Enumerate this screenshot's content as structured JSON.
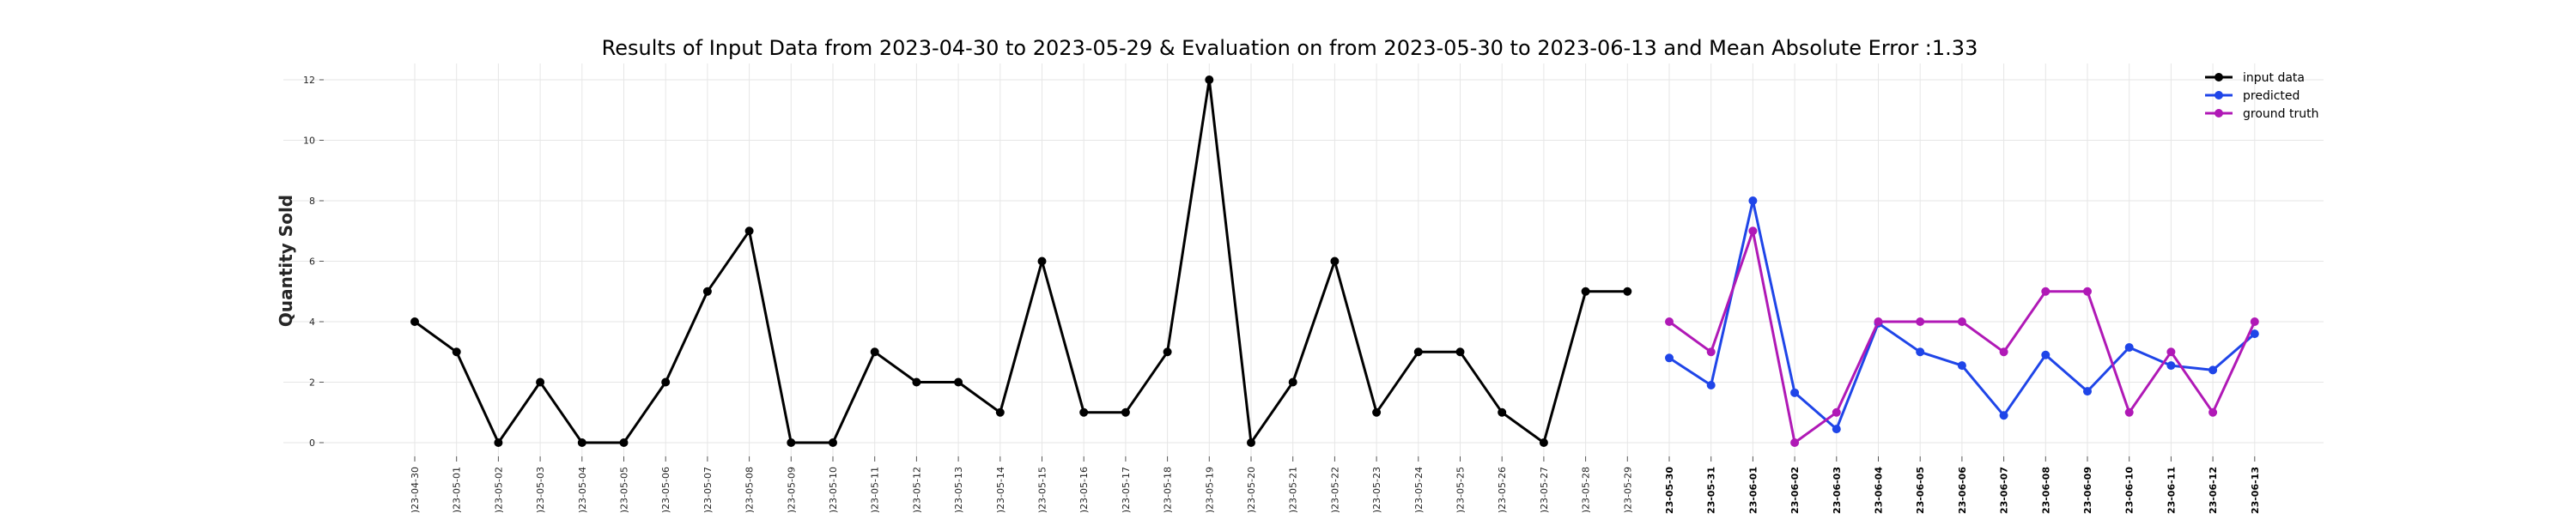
{
  "chart_data": {
    "type": "line",
    "title": "Results of Input Data from 2023-04-30 to 2023-05-29 & Evaluation on from 2023-05-30 to 2023-06-13 and Mean Absolute Error  :1.33",
    "xlabel": "",
    "ylabel": "Quantity Sold",
    "ylim": [
      -0.6,
      12.6
    ],
    "yticks": [
      "0",
      "2",
      "4",
      "6",
      "8",
      "10",
      "12"
    ],
    "grid": true,
    "legend_position": "top-right",
    "x": [
      "2023-04-30",
      "2023-05-01",
      "2023-05-02",
      "2023-05-03",
      "2023-05-04",
      "2023-05-05",
      "2023-05-06",
      "2023-05-07",
      "2023-05-08",
      "2023-05-09",
      "2023-05-10",
      "2023-05-11",
      "2023-05-12",
      "2023-05-13",
      "2023-05-14",
      "2023-05-15",
      "2023-05-16",
      "2023-05-17",
      "2023-05-18",
      "2023-05-19",
      "2023-05-20",
      "2023-05-21",
      "2023-05-22",
      "2023-05-23",
      "2023-05-24",
      "2023-05-25",
      "2023-05-26",
      "2023-05-27",
      "2023-05-28",
      "2023-05-29",
      "2023-05-30",
      "2023-05-31",
      "2023-06-01",
      "2023-06-02",
      "2023-06-03",
      "2023-06-04",
      "2023-06-05",
      "2023-06-06",
      "2023-06-07",
      "2023-06-08",
      "2023-06-09",
      "2023-06-10",
      "2023-06-11",
      "2023-06-12",
      "2023-06-13"
    ],
    "x_tick_labels": [
      ")23-04-30",
      ")23-05-01",
      ")23-05-02",
      ")23-05-03",
      ")23-05-04",
      ")23-05-05",
      ")23-05-06",
      ")23-05-07",
      ")23-05-08",
      ")23-05-09",
      ")23-05-10",
      ")23-05-11",
      ")23-05-12",
      ")23-05-13",
      ")23-05-14",
      ")23-05-15",
      ")23-05-16",
      ")23-05-17",
      ")23-05-18",
      ")23-05-19",
      ")23-05-20",
      ")23-05-21",
      ")23-05-22",
      ")23-05-23",
      ")23-05-24",
      ")23-05-25",
      ")23-05-26",
      ")23-05-27",
      ")23-05-28",
      ")23-05-29",
      ")23-05-30",
      ")23-05-31",
      ")23-06-01",
      ")23-06-02",
      ")23-06-03",
      ")23-06-04",
      ")23-06-05",
      ")23-06-06",
      ")23-06-07",
      ")23-06-08",
      ")23-06-09",
      ")23-06-10",
      ")23-06-11",
      ")23-06-12",
      ")23-06-13"
    ],
    "series": [
      {
        "name": "input data",
        "color": "#000000",
        "x": [
          "2023-04-30",
          "2023-05-01",
          "2023-05-02",
          "2023-05-03",
          "2023-05-04",
          "2023-05-05",
          "2023-05-06",
          "2023-05-07",
          "2023-05-08",
          "2023-05-09",
          "2023-05-10",
          "2023-05-11",
          "2023-05-12",
          "2023-05-13",
          "2023-05-14",
          "2023-05-15",
          "2023-05-16",
          "2023-05-17",
          "2023-05-18",
          "2023-05-19",
          "2023-05-20",
          "2023-05-21",
          "2023-05-22",
          "2023-05-23",
          "2023-05-24",
          "2023-05-25",
          "2023-05-26",
          "2023-05-27",
          "2023-05-28",
          "2023-05-29"
        ],
        "values": [
          4,
          3,
          0,
          2,
          0,
          0,
          2,
          5,
          7,
          0,
          0,
          3,
          2,
          2,
          1,
          6,
          1,
          1,
          3,
          12,
          0,
          2,
          6,
          1,
          3,
          3,
          1,
          0,
          5,
          5
        ]
      },
      {
        "name": "predicted",
        "color": "#1f45e8",
        "x": [
          "2023-05-30",
          "2023-05-31",
          "2023-06-01",
          "2023-06-02",
          "2023-06-03",
          "2023-06-04",
          "2023-06-05",
          "2023-06-06",
          "2023-06-07",
          "2023-06-08",
          "2023-06-09",
          "2023-06-10",
          "2023-06-11",
          "2023-06-12",
          "2023-06-13"
        ],
        "values": [
          2.8,
          1.9,
          8.0,
          1.65,
          0.45,
          3.95,
          3.0,
          2.55,
          0.9,
          2.9,
          1.7,
          3.15,
          2.55,
          2.4,
          3.6
        ]
      },
      {
        "name": "ground truth",
        "color": "#b019b6",
        "x": [
          "2023-05-30",
          "2023-05-31",
          "2023-06-01",
          "2023-06-02",
          "2023-06-03",
          "2023-06-04",
          "2023-06-05",
          "2023-06-06",
          "2023-06-07",
          "2023-06-08",
          "2023-06-09",
          "2023-06-10",
          "2023-06-11",
          "2023-06-12",
          "2023-06-13"
        ],
        "values": [
          4,
          3,
          7,
          0,
          1,
          4,
          4,
          4,
          3,
          5,
          5,
          1,
          3,
          1,
          4
        ]
      }
    ]
  }
}
